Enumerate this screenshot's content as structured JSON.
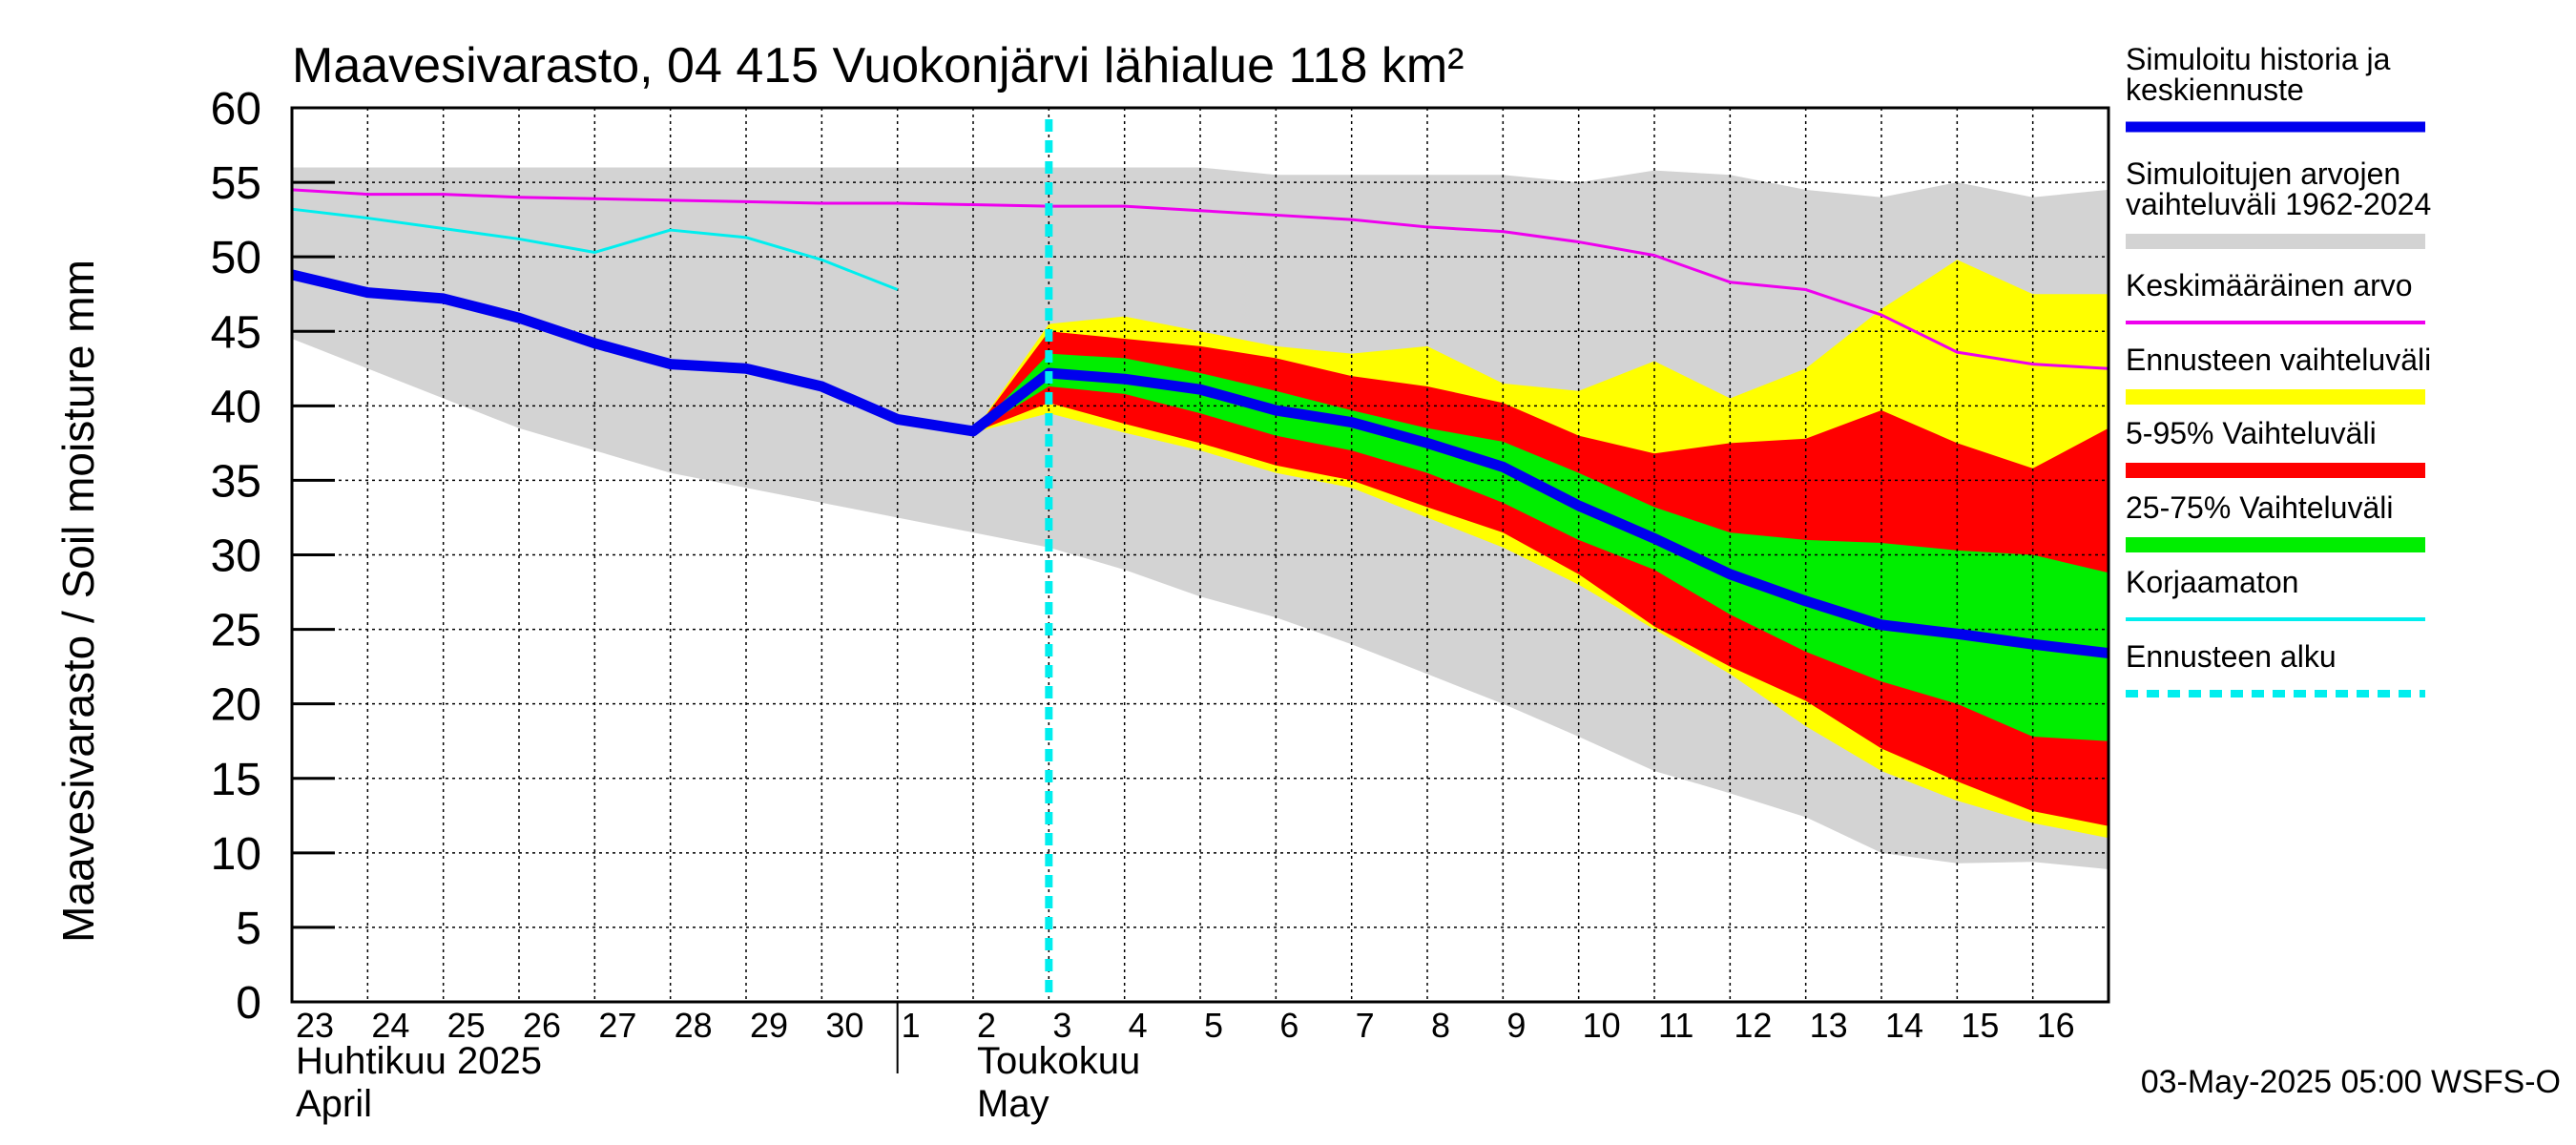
{
  "chart_data": {
    "type": "area",
    "title": "Maavesivarasto, 04 415 Vuokonjärvi lähialue 118 km²",
    "ylabel": "Maavesivarasto / Soil moisture   mm",
    "ylim": [
      0,
      60
    ],
    "yticks": [
      0,
      5,
      10,
      15,
      20,
      25,
      30,
      35,
      40,
      45,
      50,
      55,
      60
    ],
    "xlim": [
      0,
      24
    ],
    "grid": true,
    "legend_position": "right",
    "x_tick_labels": [
      "23",
      "24",
      "25",
      "26",
      "27",
      "28",
      "29",
      "30",
      "1",
      "2",
      "3",
      "4",
      "5",
      "6",
      "7",
      "8",
      "9",
      "10",
      "11",
      "12",
      "13",
      "14",
      "15",
      "16"
    ],
    "month_labels": [
      {
        "fi": "Huhtikuu  2025",
        "en": "April",
        "x": 0
      },
      {
        "fi": "Toukokuu",
        "en": "May",
        "x": 9
      }
    ],
    "month_divider_x": 8,
    "forecast_start_x": 10,
    "colors": {
      "history_band": "#d3d3d3",
      "forecast_range": "#ffff00",
      "p5_95": "#ff0000",
      "p25_75": "#00ee00",
      "median": "#0000ee",
      "mean": "#ee00ee",
      "uncorrected": "#00eeee",
      "forecast_start": "#00eeee",
      "grid": "#000000"
    },
    "series": [
      {
        "key": "history_band",
        "name": "Simuloitujen arvojen vaihteluväli 1962-2024",
        "kind": "band",
        "x": [
          0,
          1,
          2,
          3,
          4,
          5,
          6,
          7,
          8,
          9,
          10,
          11,
          12,
          13,
          14,
          15,
          16,
          17,
          18,
          19,
          20,
          21,
          22,
          23,
          24
        ],
        "upper": [
          56,
          56,
          56,
          56,
          56,
          56,
          56,
          56,
          56,
          56,
          56,
          56,
          56,
          55.5,
          55.5,
          55.5,
          55.5,
          55,
          55.8,
          55.5,
          54.5,
          54,
          55,
          54,
          54.5
        ],
        "lower": [
          44.5,
          42.5,
          40.5,
          38.5,
          37,
          35.5,
          34.5,
          33.5,
          32.5,
          31.5,
          30.5,
          29,
          27.2,
          25.8,
          24,
          22,
          20,
          17.8,
          15.5,
          14,
          12.4,
          10,
          9.3,
          9.4,
          8.9
        ]
      },
      {
        "key": "forecast_range",
        "name": "Ennusteen vaihteluväli",
        "kind": "band",
        "x": [
          9,
          10,
          11,
          12,
          13,
          14,
          15,
          16,
          17,
          18,
          19,
          20,
          21,
          22,
          23,
          24
        ],
        "upper": [
          38.2,
          45.5,
          46,
          45,
          44,
          43.5,
          44,
          41.5,
          41,
          43,
          40.5,
          42.5,
          46.5,
          49.8,
          47.5,
          47.5
        ],
        "lower": [
          38.2,
          39.5,
          38.2,
          37,
          35.5,
          34.5,
          32.5,
          30.5,
          28,
          25,
          22,
          18.5,
          15.5,
          13.5,
          12,
          11
        ]
      },
      {
        "key": "p5_95",
        "name": "5-95% Vaihteluväli",
        "kind": "band",
        "x": [
          9,
          10,
          11,
          12,
          13,
          14,
          15,
          16,
          17,
          18,
          19,
          20,
          21,
          22,
          23,
          24
        ],
        "upper": [
          38.2,
          45,
          44.5,
          44,
          43.2,
          42,
          41.3,
          40.2,
          38,
          36.8,
          37.5,
          37.8,
          39.7,
          37.5,
          35.8,
          38.5
        ],
        "lower": [
          38.2,
          40.2,
          38.8,
          37.5,
          36,
          35,
          33.2,
          31.5,
          28.7,
          25.2,
          22.5,
          20.2,
          17,
          14.8,
          12.8,
          11.8
        ]
      },
      {
        "key": "p25_75",
        "name": "25-75% Vaihteluväli",
        "kind": "band",
        "x": [
          9,
          10,
          11,
          12,
          13,
          14,
          15,
          16,
          17,
          18,
          19,
          20,
          21,
          22,
          23,
          24
        ],
        "upper": [
          38.2,
          43.5,
          43.2,
          42.2,
          41,
          39.7,
          38.5,
          37.6,
          35.5,
          33.2,
          31.5,
          31,
          30.8,
          30.3,
          30,
          28.8
        ],
        "lower": [
          38.2,
          41.3,
          40.8,
          39.5,
          38,
          37,
          35.5,
          33.5,
          31,
          29,
          26,
          23.5,
          21.5,
          20,
          17.8,
          17.5
        ]
      },
      {
        "key": "mean",
        "name": "Keskimääräinen arvo",
        "kind": "line",
        "x": [
          0,
          1,
          2,
          3,
          4,
          5,
          6,
          7,
          8,
          9,
          10,
          11,
          12,
          13,
          14,
          15,
          16,
          17,
          18,
          19,
          20,
          21,
          22,
          23,
          24
        ],
        "y": [
          54.5,
          54.2,
          54.2,
          54,
          53.9,
          53.8,
          53.7,
          53.6,
          53.6,
          53.5,
          53.4,
          53.4,
          53.1,
          52.8,
          52.5,
          52,
          51.7,
          51,
          50.1,
          48.3,
          47.8,
          46.1,
          43.6,
          42.8,
          42.5
        ]
      },
      {
        "key": "uncorrected",
        "name": "Korjaamaton",
        "kind": "line",
        "x": [
          0,
          1,
          2,
          3,
          4,
          5,
          6,
          7,
          8
        ],
        "y": [
          53.2,
          52.6,
          51.9,
          51.2,
          50.3,
          51.8,
          51.3,
          49.8,
          47.8
        ]
      },
      {
        "key": "median",
        "name": "Simuloitu historia ja keskiennuste",
        "kind": "line",
        "x": [
          0,
          1,
          2,
          3,
          4,
          5,
          6,
          7,
          8,
          9,
          10,
          11,
          12,
          13,
          14,
          15,
          16,
          17,
          18,
          19,
          20,
          21,
          22,
          23,
          24
        ],
        "y": [
          48.8,
          47.6,
          47.2,
          45.9,
          44.2,
          42.8,
          42.5,
          41.3,
          39.1,
          38.3,
          42.2,
          41.8,
          41.1,
          39.7,
          38.9,
          37.5,
          35.9,
          33.3,
          31.1,
          28.7,
          26.9,
          25.3,
          24.7,
          24,
          23.4
        ]
      }
    ],
    "legend_entries": [
      {
        "label_lines": [
          "Simuloitu historia ja",
          "keskiennuste"
        ],
        "color": "#0000ee",
        "style": "thick"
      },
      {
        "label_lines": [
          "Simuloitujen arvojen",
          "vaihteluväli 1962-2024"
        ],
        "color": "#d3d3d3",
        "style": "band"
      },
      {
        "label_lines": [
          "Keskimääräinen arvo"
        ],
        "color": "#ee00ee",
        "style": "thin"
      },
      {
        "label_lines": [
          "Ennusteen vaihteluväli"
        ],
        "color": "#ffff00",
        "style": "band"
      },
      {
        "label_lines": [
          "5-95% Vaihteluväli"
        ],
        "color": "#ff0000",
        "style": "band"
      },
      {
        "label_lines": [
          "25-75% Vaihteluväli"
        ],
        "color": "#00ee00",
        "style": "band"
      },
      {
        "label_lines": [
          "Korjaamaton"
        ],
        "color": "#00eeee",
        "style": "thin"
      },
      {
        "label_lines": [
          "Ennusteen alku"
        ],
        "color": "#00eeee",
        "style": "dashed"
      }
    ],
    "timestamp": "03-May-2025 05:00 WSFS-O"
  }
}
